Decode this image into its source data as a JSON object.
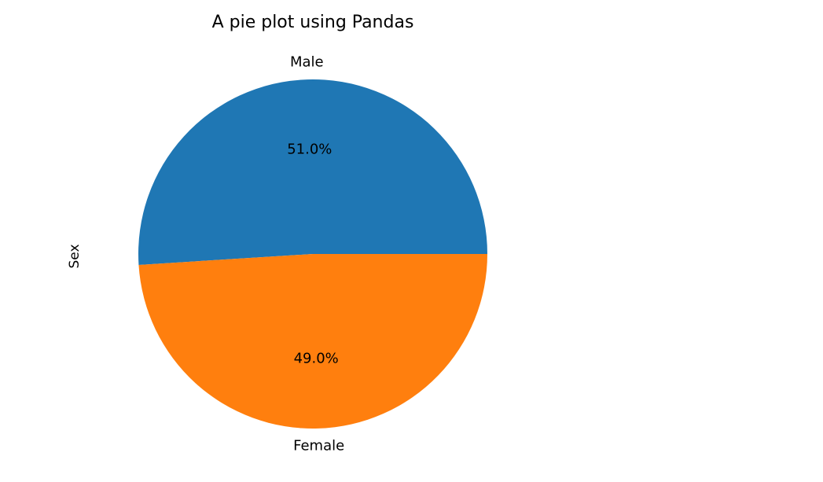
{
  "chart_data": {
    "type": "pie",
    "title": "A pie plot using Pandas",
    "ylabel": "Sex",
    "categories": [
      "Male",
      "Female"
    ],
    "values": [
      51.0,
      49.0
    ],
    "percent_labels": [
      "51.0%",
      "49.0%"
    ],
    "colors": [
      "#1f77b4",
      "#ff7f0e"
    ],
    "start_angle_deg": 0,
    "direction": "counterclockwise",
    "legend": false
  }
}
